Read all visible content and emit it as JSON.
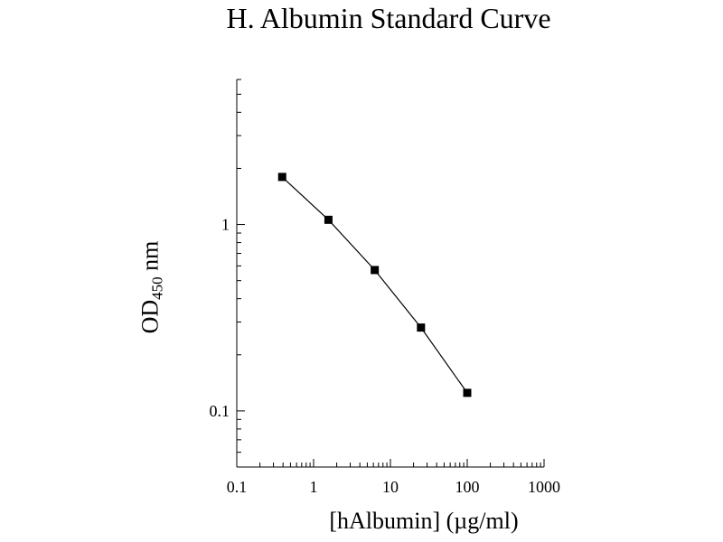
{
  "chart_data": {
    "type": "line",
    "title": "H. Albumin Standard Curve",
    "ylabel": {
      "main": "OD",
      "sub": "450",
      "unit": "nm"
    },
    "xlabel": "[hAlbumin] (µg/ml)",
    "x_scale": "log",
    "y_scale": "log",
    "xlim": [
      0.1,
      1000
    ],
    "ylim": [
      0.05,
      6
    ],
    "x_ticks": [
      {
        "value": 0.1,
        "label": "0.1"
      },
      {
        "value": 1,
        "label": "1"
      },
      {
        "value": 10,
        "label": "10"
      },
      {
        "value": 100,
        "label": "100"
      },
      {
        "value": 1000,
        "label": "1000"
      }
    ],
    "y_ticks": [
      {
        "value": 0.1,
        "label": "0.1"
      },
      {
        "value": 1,
        "label": "1"
      }
    ],
    "grid": false,
    "series": [
      {
        "x": [
          0.39,
          1.56,
          6.25,
          25,
          100
        ],
        "y": [
          1.8,
          1.06,
          0.57,
          0.28,
          0.125
        ],
        "color": "#000000",
        "marker": "square"
      }
    ]
  }
}
